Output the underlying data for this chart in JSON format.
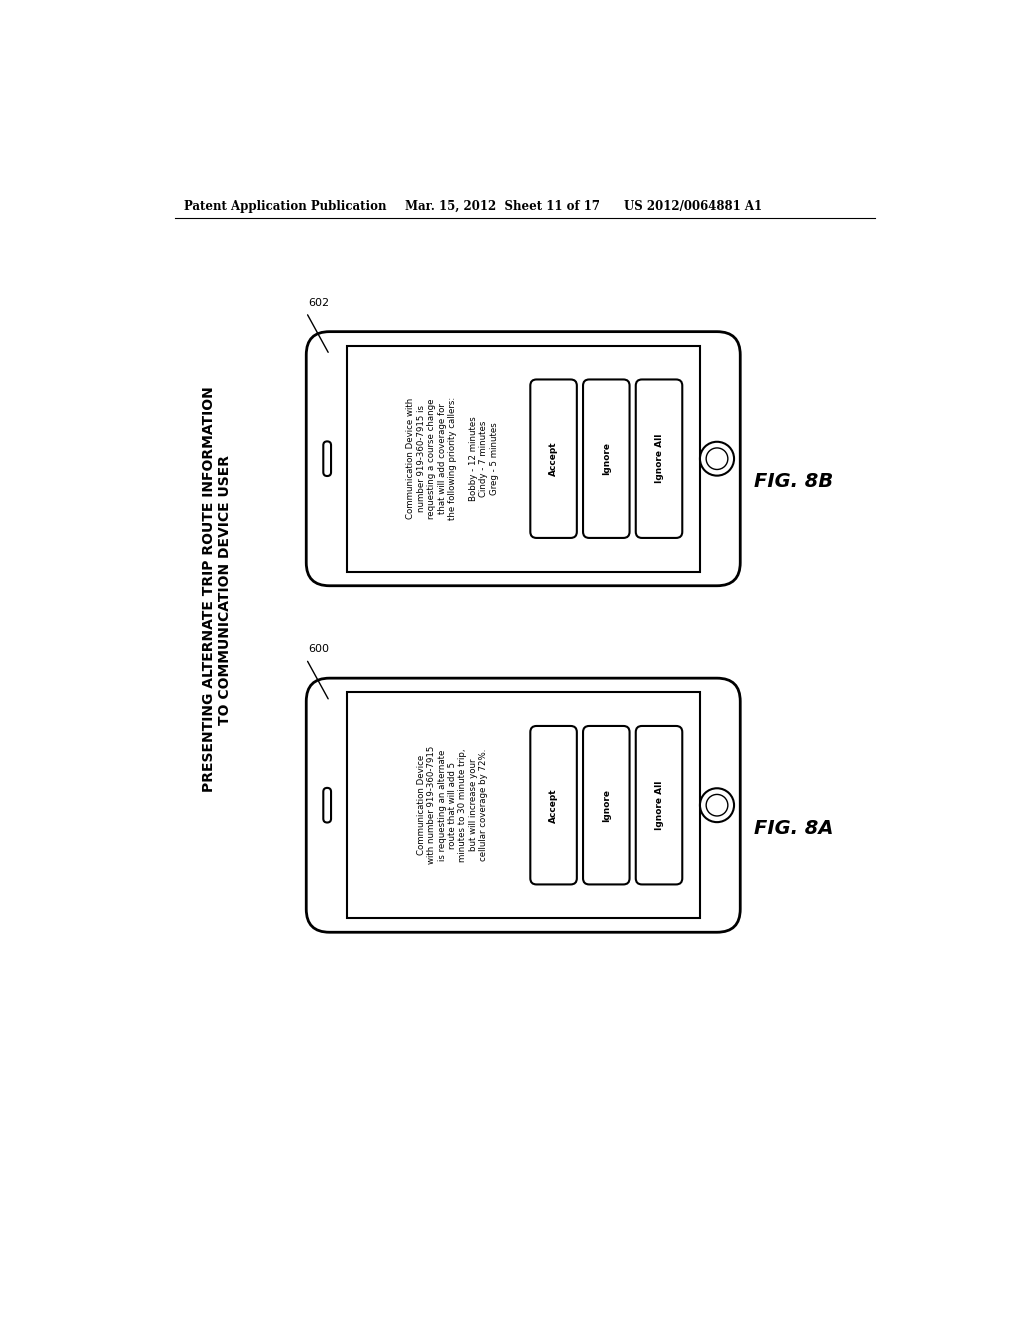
{
  "header_left": "Patent Application Publication",
  "header_mid": "Mar. 15, 2012  Sheet 11 of 17",
  "header_right": "US 2012/0064881 A1",
  "title_line1": "PRESENTING ALTERNATE TRIP ROUTE INFORMATION",
  "title_line2": "TO COMMUNICATION DEVICE USER",
  "fig8a_label": "FIG. 8A",
  "fig8b_label": "FIG. 8B",
  "ref_600": "600",
  "ref_602": "602",
  "phone8a_text": "Communication Device\nwith number 919-360-7915\nis requesting an alternate\nroute that will add 5\nminutes to 30 minute trip,\nbut will increase your\ncellular coverage by 72%.",
  "phone8b_text": "Communication Device with\nnumber 919-360-7915 is\nrequesting a course change\nthat will add coverage for\nthe following priority callers:\n\nBobby - 12 minutes\nCindy - 7 minutes\nGreg - 5 minutes",
  "btn_accept": "Accept",
  "btn_ignore": "Ignore",
  "btn_ignore_all": "Ignore All",
  "bg_color": "#ffffff",
  "fg_color": "#000000"
}
